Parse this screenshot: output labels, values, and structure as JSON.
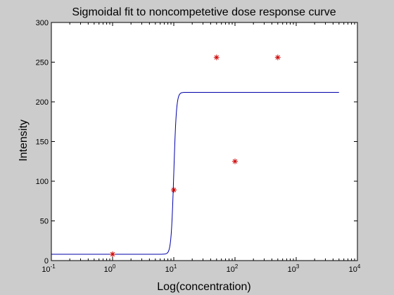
{
  "chart_data": {
    "type": "scatter",
    "title": "Sigmoidal fit to noncompetetive dose response curve",
    "xlabel": "Log(concentration)",
    "ylabel": "Intensity",
    "xscale": "log",
    "xlim": [
      0.1,
      10000
    ],
    "ylim": [
      0,
      300
    ],
    "x_ticks": [
      {
        "base": "10",
        "exp": "-1",
        "value": 0.1
      },
      {
        "base": "10",
        "exp": "0",
        "value": 1
      },
      {
        "base": "10",
        "exp": "1",
        "value": 10
      },
      {
        "base": "10",
        "exp": "2",
        "value": 100
      },
      {
        "base": "10",
        "exp": "3",
        "value": 1000
      },
      {
        "base": "10",
        "exp": "4",
        "value": 10000
      }
    ],
    "y_ticks": [
      0,
      50,
      100,
      150,
      200,
      250,
      300
    ],
    "grid": false,
    "series": [
      {
        "kind": "markers",
        "marker": "asterisk",
        "color": "#cc0000",
        "points": [
          {
            "x": 1,
            "y": 8
          },
          {
            "x": 10,
            "y": 89
          },
          {
            "x": 50,
            "y": 256
          },
          {
            "x": 100,
            "y": 125
          },
          {
            "x": 500,
            "y": 256
          }
        ]
      },
      {
        "kind": "line",
        "color": "#0000aa",
        "fit": {
          "bottom": 8,
          "top": 212,
          "ec50": 10,
          "hill": 20
        },
        "x_range": [
          0.1,
          5000
        ]
      }
    ]
  }
}
